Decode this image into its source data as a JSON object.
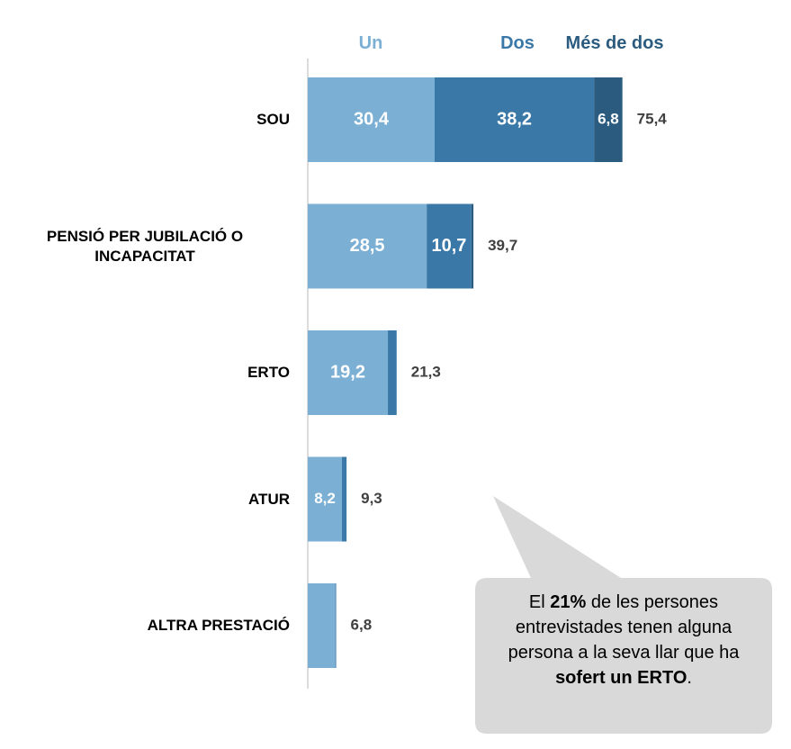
{
  "chart_data": {
    "type": "stacked-barh",
    "categories": [
      "SOU",
      "PENSIÓ PER JUBILACIÓ O INCAPACITAT",
      "ERTO",
      "ATUR",
      "ALTRA PRESTACIÓ"
    ],
    "series": [
      {
        "name": "Un",
        "color": "#7bafd4",
        "values": [
          30.4,
          28.5,
          19.2,
          8.2,
          6.6
        ],
        "value_labels": [
          "30,4",
          "28,5",
          "19,2",
          "8,2",
          null
        ]
      },
      {
        "name": "Dos",
        "color": "#3a78a8",
        "values": [
          38.2,
          10.7,
          2.1,
          1.1,
          0.2
        ],
        "value_labels": [
          "38,2",
          "10,7",
          null,
          null,
          null
        ]
      },
      {
        "name": "Més de dos",
        "color": "#2b5c80",
        "values": [
          6.8,
          0.5,
          0,
          0,
          0
        ],
        "value_labels": [
          "6,8",
          null,
          null,
          null,
          null
        ]
      }
    ],
    "totals": [
      75.4,
      39.7,
      21.3,
      9.3,
      6.8
    ],
    "total_labels": [
      "75,4",
      "39,7",
      "21,3",
      "9,3",
      "6,8"
    ],
    "xlim": [
      0,
      80
    ],
    "annotation": [
      "El ",
      "21%",
      " de les persones entrevistades tenen alguna persona a la seva llar que ha ",
      "sofert un ERTO",
      "."
    ]
  }
}
